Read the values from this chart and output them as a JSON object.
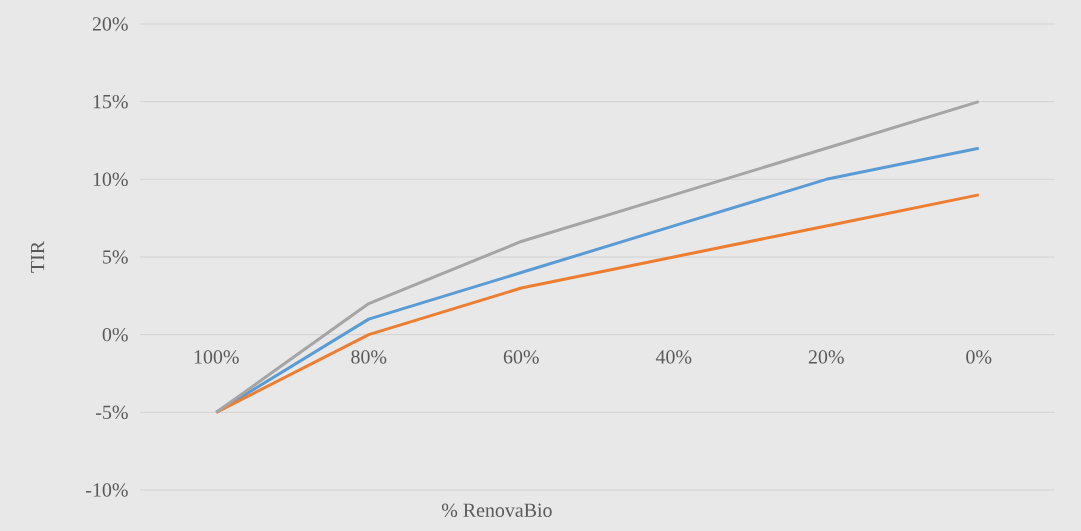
{
  "chart_data": {
    "type": "line",
    "xlabel": "% RenovaBio",
    "ylabel": "TIR",
    "categories": [
      "100%",
      "80%",
      "60%",
      "40%",
      "20%",
      "0%"
    ],
    "series": [
      {
        "color": "#5b9bd5",
        "values": [
          -5,
          1,
          4,
          7,
          10,
          12
        ]
      },
      {
        "color": "#ed7d31",
        "values": [
          -5,
          0,
          3,
          5,
          7,
          9
        ]
      },
      {
        "color": "#a5a5a5",
        "values": [
          -5,
          2,
          6,
          9,
          12,
          15
        ]
      }
    ],
    "ylim": [
      -10,
      20
    ],
    "yticks": [
      {
        "value": -10,
        "label": "-10%"
      },
      {
        "value": -5,
        "label": "-5%"
      },
      {
        "value": 0,
        "label": "0%"
      },
      {
        "value": 5,
        "label": "5%"
      },
      {
        "value": 10,
        "label": "10%"
      },
      {
        "value": 15,
        "label": "15%"
      },
      {
        "value": 20,
        "label": "20%"
      }
    ],
    "grid": "y",
    "legend": false,
    "marker": "none",
    "line_style": "solid"
  }
}
